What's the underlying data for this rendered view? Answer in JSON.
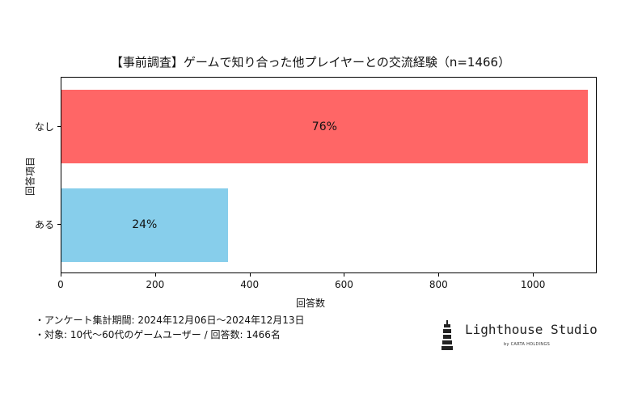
{
  "chart_data": {
    "type": "bar",
    "orientation": "horizontal",
    "title": "【事前調査】ゲームで知り合った他プレイヤーとの交流経験（n=1466）",
    "xlabel": "回答数",
    "ylabel": "回答項目",
    "categories": [
      "なし",
      "ある"
    ],
    "values": [
      1114,
      352
    ],
    "data_labels": [
      "76%",
      "24%"
    ],
    "colors": [
      "#ff6666",
      "#87ceeb"
    ],
    "xlim": [
      0,
      1135
    ],
    "xticks": [
      0,
      200,
      400,
      600,
      800,
      1000
    ],
    "grid": false,
    "legend": "none"
  },
  "notes": [
    "・アンケート集計期間: 2024年12月06日〜2024年12月13日",
    "・対象: 10代〜60代のゲームユーザー / 回答数: 1466名"
  ],
  "logo": {
    "name": "Lighthouse Studio",
    "tagline": "by CARTA HOLDINGS",
    "icon": "lighthouse-icon"
  }
}
